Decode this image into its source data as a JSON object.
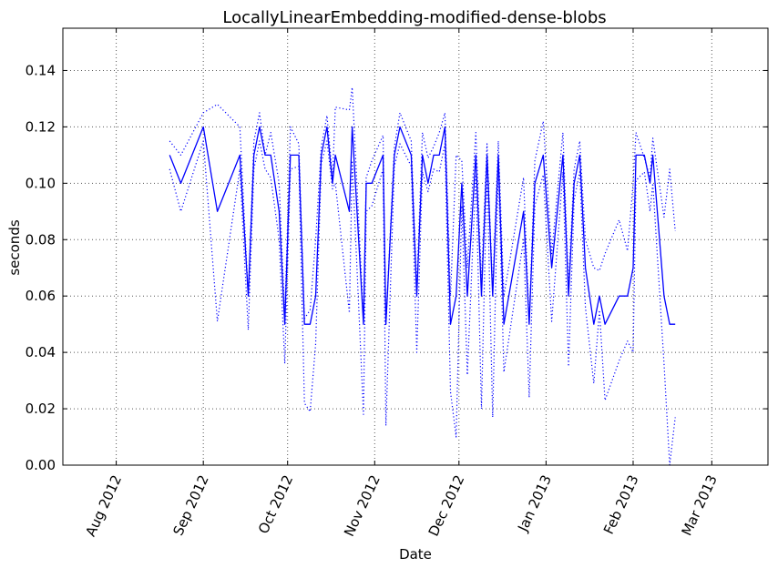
{
  "chart_data": {
    "type": "line",
    "title": "LocallyLinearEmbedding-modified-dense-blobs",
    "xlabel": "Date",
    "ylabel": "seconds",
    "xlim": [
      "2012-07-13",
      "2013-03-21"
    ],
    "ylim": [
      0,
      0.155
    ],
    "x_ticks": [
      {
        "date": "2012-08-01",
        "label": "Aug 2012"
      },
      {
        "date": "2012-09-01",
        "label": "Sep 2012"
      },
      {
        "date": "2012-10-01",
        "label": "Oct 2012"
      },
      {
        "date": "2012-11-01",
        "label": "Nov 2012"
      },
      {
        "date": "2012-12-01",
        "label": "Dec 2012"
      },
      {
        "date": "2013-01-01",
        "label": "Jan 2013"
      },
      {
        "date": "2013-02-01",
        "label": "Feb 2013"
      },
      {
        "date": "2013-03-01",
        "label": "Mar 2013"
      }
    ],
    "y_ticks": [
      "0.00",
      "0.02",
      "0.04",
      "0.06",
      "0.08",
      "0.10",
      "0.12",
      "0.14"
    ],
    "grid": true,
    "line_color": "#0000ff",
    "series": [
      {
        "style": "solid",
        "points": [
          [
            "2012-08-20",
            0.11
          ],
          [
            "2012-08-24",
            0.1
          ],
          [
            "2012-09-01",
            0.12
          ],
          [
            "2012-09-06",
            0.09
          ],
          [
            "2012-09-14",
            0.11
          ],
          [
            "2012-09-17",
            0.06
          ],
          [
            "2012-09-19",
            0.11
          ],
          [
            "2012-09-21",
            0.12
          ],
          [
            "2012-09-23",
            0.11
          ],
          [
            "2012-09-25",
            0.11
          ],
          [
            "2012-09-28",
            0.09
          ],
          [
            "2012-09-30",
            0.05
          ],
          [
            "2012-10-02",
            0.11
          ],
          [
            "2012-10-05",
            0.11
          ],
          [
            "2012-10-07",
            0.05
          ],
          [
            "2012-10-09",
            0.05
          ],
          [
            "2012-10-11",
            0.06
          ],
          [
            "2012-10-13",
            0.11
          ],
          [
            "2012-10-15",
            0.12
          ],
          [
            "2012-10-17",
            0.1
          ],
          [
            "2012-10-18",
            0.11
          ],
          [
            "2012-10-23",
            0.09
          ],
          [
            "2012-10-24",
            0.12
          ],
          [
            "2012-10-28",
            0.05
          ],
          [
            "2012-10-29",
            0.1
          ],
          [
            "2012-10-31",
            0.1
          ],
          [
            "2012-11-04",
            0.11
          ],
          [
            "2012-11-05",
            0.05
          ],
          [
            "2012-11-08",
            0.11
          ],
          [
            "2012-11-10",
            0.12
          ],
          [
            "2012-11-14",
            0.11
          ],
          [
            "2012-11-16",
            0.06
          ],
          [
            "2012-11-18",
            0.11
          ],
          [
            "2012-11-20",
            0.1
          ],
          [
            "2012-11-22",
            0.11
          ],
          [
            "2012-11-24",
            0.11
          ],
          [
            "2012-11-26",
            0.12
          ],
          [
            "2012-11-28",
            0.05
          ],
          [
            "2012-11-30",
            0.06
          ],
          [
            "2012-12-02",
            0.1
          ],
          [
            "2012-12-04",
            0.06
          ],
          [
            "2012-12-07",
            0.11
          ],
          [
            "2012-12-09",
            0.06
          ],
          [
            "2012-12-11",
            0.11
          ],
          [
            "2012-12-13",
            0.06
          ],
          [
            "2012-12-15",
            0.11
          ],
          [
            "2012-12-17",
            0.05
          ],
          [
            "2012-12-24",
            0.09
          ],
          [
            "2012-12-26",
            0.05
          ],
          [
            "2012-12-28",
            0.1
          ],
          [
            "2012-12-31",
            0.11
          ],
          [
            "2013-01-03",
            0.07
          ],
          [
            "2013-01-07",
            0.11
          ],
          [
            "2013-01-09",
            0.06
          ],
          [
            "2013-01-11",
            0.1
          ],
          [
            "2013-01-13",
            0.11
          ],
          [
            "2013-01-15",
            0.07
          ],
          [
            "2013-01-18",
            0.05
          ],
          [
            "2013-01-20",
            0.06
          ],
          [
            "2013-01-22",
            0.05
          ],
          [
            "2013-01-27",
            0.06
          ],
          [
            "2013-01-30",
            0.06
          ],
          [
            "2013-02-01",
            0.07
          ],
          [
            "2013-02-02",
            0.11
          ],
          [
            "2013-02-05",
            0.11
          ],
          [
            "2013-02-07",
            0.1
          ],
          [
            "2013-02-08",
            0.11
          ],
          [
            "2013-02-12",
            0.06
          ],
          [
            "2013-02-14",
            0.05
          ],
          [
            "2013-02-16",
            0.05
          ]
        ]
      },
      {
        "style": "dotted",
        "points": [
          [
            "2012-08-20",
            0.115
          ],
          [
            "2012-08-24",
            0.11
          ],
          [
            "2012-09-01",
            0.125
          ],
          [
            "2012-09-06",
            0.128
          ],
          [
            "2012-09-14",
            0.12
          ],
          [
            "2012-09-17",
            0.06
          ],
          [
            "2012-09-19",
            0.115
          ],
          [
            "2012-09-21",
            0.125
          ],
          [
            "2012-09-23",
            0.11
          ],
          [
            "2012-09-25",
            0.118
          ],
          [
            "2012-09-28",
            0.1
          ],
          [
            "2012-09-30",
            0.053
          ],
          [
            "2012-10-02",
            0.12
          ],
          [
            "2012-10-05",
            0.114
          ],
          [
            "2012-10-07",
            0.052
          ],
          [
            "2012-10-09",
            0.055
          ],
          [
            "2012-10-11",
            0.08
          ],
          [
            "2012-10-13",
            0.113
          ],
          [
            "2012-10-15",
            0.124
          ],
          [
            "2012-10-17",
            0.102
          ],
          [
            "2012-10-18",
            0.127
          ],
          [
            "2012-10-23",
            0.126
          ],
          [
            "2012-10-24",
            0.134
          ],
          [
            "2012-10-28",
            0.052
          ],
          [
            "2012-10-29",
            0.102
          ],
          [
            "2012-10-31",
            0.108
          ],
          [
            "2012-11-04",
            0.117
          ],
          [
            "2012-11-05",
            0.05
          ],
          [
            "2012-11-08",
            0.113
          ],
          [
            "2012-11-10",
            0.125
          ],
          [
            "2012-11-14",
            0.115
          ],
          [
            "2012-11-16",
            0.063
          ],
          [
            "2012-11-18",
            0.118
          ],
          [
            "2012-11-20",
            0.109
          ],
          [
            "2012-11-22",
            0.113
          ],
          [
            "2012-11-24",
            0.118
          ],
          [
            "2012-11-26",
            0.125
          ],
          [
            "2012-11-28",
            0.06
          ],
          [
            "2012-11-30",
            0.11
          ],
          [
            "2012-12-02",
            0.108
          ],
          [
            "2012-12-04",
            0.07
          ],
          [
            "2012-12-07",
            0.118
          ],
          [
            "2012-12-09",
            0.065
          ],
          [
            "2012-12-11",
            0.114
          ],
          [
            "2012-12-13",
            0.062
          ],
          [
            "2012-12-15",
            0.115
          ],
          [
            "2012-12-17",
            0.06
          ],
          [
            "2012-12-24",
            0.102
          ],
          [
            "2012-12-26",
            0.05
          ],
          [
            "2012-12-28",
            0.108
          ],
          [
            "2012-12-31",
            0.122
          ],
          [
            "2013-01-03",
            0.075
          ],
          [
            "2013-01-07",
            0.118
          ],
          [
            "2013-01-09",
            0.063
          ],
          [
            "2013-01-11",
            0.105
          ],
          [
            "2013-01-13",
            0.115
          ],
          [
            "2013-01-15",
            0.08
          ],
          [
            "2013-01-18",
            0.07
          ],
          [
            "2013-01-20",
            0.069
          ],
          [
            "2013-01-22",
            0.075
          ],
          [
            "2013-01-27",
            0.087
          ],
          [
            "2013-01-30",
            0.076
          ],
          [
            "2013-02-01",
            0.1
          ],
          [
            "2013-02-02",
            0.118
          ],
          [
            "2013-02-05",
            0.109
          ],
          [
            "2013-02-07",
            0.102
          ],
          [
            "2013-02-08",
            0.116
          ],
          [
            "2013-02-12",
            0.088
          ],
          [
            "2013-02-14",
            0.105
          ],
          [
            "2013-02-16",
            0.083
          ]
        ]
      },
      {
        "style": "dotted",
        "points": [
          [
            "2012-08-20",
            0.105
          ],
          [
            "2012-08-24",
            0.09
          ],
          [
            "2012-09-01",
            0.115
          ],
          [
            "2012-09-06",
            0.051
          ],
          [
            "2012-09-14",
            0.105
          ],
          [
            "2012-09-17",
            0.048
          ],
          [
            "2012-09-19",
            0.105
          ],
          [
            "2012-09-21",
            0.115
          ],
          [
            "2012-09-23",
            0.105
          ],
          [
            "2012-09-25",
            0.102
          ],
          [
            "2012-09-28",
            0.08
          ],
          [
            "2012-09-30",
            0.036
          ],
          [
            "2012-10-02",
            0.105
          ],
          [
            "2012-10-05",
            0.106
          ],
          [
            "2012-10-07",
            0.022
          ],
          [
            "2012-10-09",
            0.019
          ],
          [
            "2012-10-11",
            0.043
          ],
          [
            "2012-10-13",
            0.107
          ],
          [
            "2012-10-15",
            0.115
          ],
          [
            "2012-10-17",
            0.098
          ],
          [
            "2012-10-18",
            0.1
          ],
          [
            "2012-10-23",
            0.054
          ],
          [
            "2012-10-24",
            0.108
          ],
          [
            "2012-10-28",
            0.018
          ],
          [
            "2012-10-29",
            0.09
          ],
          [
            "2012-10-31",
            0.092
          ],
          [
            "2012-11-04",
            0.105
          ],
          [
            "2012-11-05",
            0.014
          ],
          [
            "2012-11-08",
            0.106
          ],
          [
            "2012-11-10",
            0.114
          ],
          [
            "2012-11-14",
            0.106
          ],
          [
            "2012-11-16",
            0.04
          ],
          [
            "2012-11-18",
            0.104
          ],
          [
            "2012-11-20",
            0.097
          ],
          [
            "2012-11-22",
            0.105
          ],
          [
            "2012-11-24",
            0.104
          ],
          [
            "2012-11-26",
            0.114
          ],
          [
            "2012-11-28",
            0.026
          ],
          [
            "2012-11-30",
            0.01
          ],
          [
            "2012-12-02",
            0.092
          ],
          [
            "2012-12-04",
            0.032
          ],
          [
            "2012-12-07",
            0.103
          ],
          [
            "2012-12-09",
            0.02
          ],
          [
            "2012-12-11",
            0.105
          ],
          [
            "2012-12-13",
            0.017
          ],
          [
            "2012-12-15",
            0.106
          ],
          [
            "2012-12-17",
            0.033
          ],
          [
            "2012-12-24",
            0.08
          ],
          [
            "2012-12-26",
            0.024
          ],
          [
            "2012-12-28",
            0.092
          ],
          [
            "2012-12-31",
            0.103
          ],
          [
            "2013-01-03",
            0.051
          ],
          [
            "2013-01-07",
            0.104
          ],
          [
            "2013-01-09",
            0.035
          ],
          [
            "2013-01-11",
            0.094
          ],
          [
            "2013-01-13",
            0.104
          ],
          [
            "2013-01-15",
            0.056
          ],
          [
            "2013-01-18",
            0.029
          ],
          [
            "2013-01-20",
            0.055
          ],
          [
            "2013-01-22",
            0.023
          ],
          [
            "2013-01-27",
            0.037
          ],
          [
            "2013-01-30",
            0.044
          ],
          [
            "2013-02-01",
            0.04
          ],
          [
            "2013-02-02",
            0.101
          ],
          [
            "2013-02-05",
            0.104
          ],
          [
            "2013-02-07",
            0.09
          ],
          [
            "2013-02-08",
            0.1
          ],
          [
            "2013-02-12",
            0.036
          ],
          [
            "2013-02-14",
            0.0
          ],
          [
            "2013-02-16",
            0.017
          ]
        ]
      }
    ]
  }
}
